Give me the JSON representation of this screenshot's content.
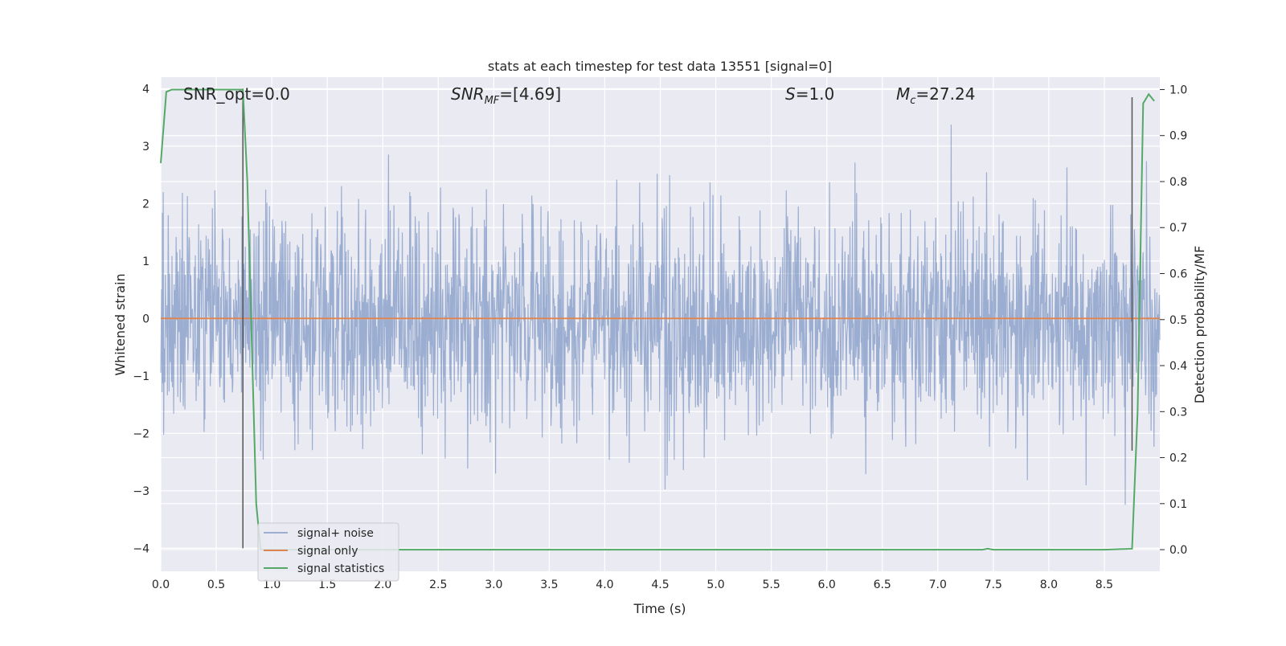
{
  "chart_data": {
    "type": "line",
    "title": "stats at each timestep for test data 13551 [signal=0]",
    "xlabel": "Time (s)",
    "ylabel_left": "Whitened strain",
    "ylabel_right": "Detection probability/MF",
    "xlim": [
      0.0,
      9.0
    ],
    "ylim_left": [
      -4.4,
      4.2
    ],
    "ylim_right": [
      -0.047,
      1.027
    ],
    "x_ticks": [
      0.0,
      0.5,
      1.0,
      1.5,
      2.0,
      2.5,
      3.0,
      3.5,
      4.0,
      4.5,
      5.0,
      5.5,
      6.0,
      6.5,
      7.0,
      7.5,
      8.0,
      8.5
    ],
    "x_tick_labels": [
      "0.0",
      "0.5",
      "1.0",
      "1.5",
      "2.0",
      "2.5",
      "3.0",
      "3.5",
      "4.0",
      "4.5",
      "5.0",
      "5.5",
      "6.0",
      "6.5",
      "7.0",
      "7.5",
      "8.0",
      "8.5"
    ],
    "y_left_ticks": [
      -4,
      -3,
      -2,
      -1,
      0,
      1,
      2,
      3,
      4
    ],
    "y_left_tick_labels": [
      "−4",
      "−3",
      "−2",
      "−1",
      "0",
      "1",
      "2",
      "3",
      "4"
    ],
    "y_right_ticks": [
      0.0,
      0.1,
      0.2,
      0.3,
      0.4,
      0.5,
      0.6,
      0.7,
      0.8,
      0.9,
      1.0
    ],
    "y_right_tick_labels": [
      "0.0",
      "0.1",
      "0.2",
      "0.3",
      "0.4",
      "0.5",
      "0.6",
      "0.7",
      "0.8",
      "0.9",
      "1.0"
    ],
    "grid": true,
    "legend_position": "lower-left",
    "annotations": [
      {
        "text": "SNR_opt=0.0",
        "x": 0.2,
        "y_right": 1.0
      },
      {
        "text": "SNR_MF=[4.69]",
        "x": 2.6,
        "y_right": 1.0
      },
      {
        "text": "S=1.0",
        "x": 5.6,
        "y_right": 1.0
      },
      {
        "text": "M_c=27.24",
        "x": 6.6,
        "y_right": 1.0
      }
    ],
    "series": [
      {
        "name": "signal+ noise",
        "axis": "left",
        "color": "#4c72b0",
        "opacity": 0.5,
        "description": "whitened noise, approx. gaussian with sigma ~0.9 over t=0..9 s",
        "envelope": {
          "typical_max": 2.2,
          "typical_min": -2.2,
          "peak_max": 3.75,
          "peak_min": -4.0
        }
      },
      {
        "name": "signal only",
        "axis": "left",
        "color": "#dd8452",
        "x": [
          0.0,
          9.0
        ],
        "y": [
          0.0,
          0.0
        ]
      },
      {
        "name": "signal statistics",
        "axis": "right",
        "color": "#55a868",
        "x": [
          0.0,
          0.05,
          0.1,
          0.15,
          0.2,
          0.3,
          0.4,
          0.5,
          0.6,
          0.7,
          0.74,
          0.78,
          0.82,
          0.86,
          0.9,
          1.0,
          2.0,
          3.0,
          4.0,
          5.0,
          6.0,
          7.0,
          7.4,
          7.45,
          7.5,
          8.0,
          8.5,
          8.75,
          8.8,
          8.85,
          8.9,
          8.95
        ],
        "y": [
          0.84,
          0.995,
          1.0,
          1.0,
          1.0,
          1.0,
          1.0,
          1.0,
          1.0,
          1.0,
          1.0,
          0.8,
          0.45,
          0.1,
          0.0,
          0.0,
          0.0,
          0.0,
          0.0,
          0.0,
          0.0,
          0.0,
          0.0,
          0.002,
          0.0,
          0.0,
          0.0,
          0.002,
          0.3,
          0.97,
          0.99,
          0.975
        ]
      }
    ],
    "vertical_markers": [
      {
        "x": 0.74,
        "y_left_from": -4.0,
        "y_left_to": 4.0,
        "color": "#555555"
      },
      {
        "x": 8.75,
        "y_left_from": -2.3,
        "y_left_to": 3.85,
        "color": "#555555"
      }
    ]
  },
  "legend": {
    "items": [
      {
        "label": "signal+ noise",
        "color": "#4c72b0"
      },
      {
        "label": "signal only",
        "color": "#dd8452"
      },
      {
        "label": "signal statistics",
        "color": "#55a868"
      }
    ]
  },
  "annotations_text": {
    "snr_opt": "SNR_opt=0.0",
    "snr_mf_base": "SNR",
    "snr_mf_sub": "MF",
    "snr_mf_value": "=[4.69]",
    "s_base": "S",
    "s_value": "=1.0",
    "mc_base": "M",
    "mc_sub": "c",
    "mc_value": "=27.24"
  }
}
